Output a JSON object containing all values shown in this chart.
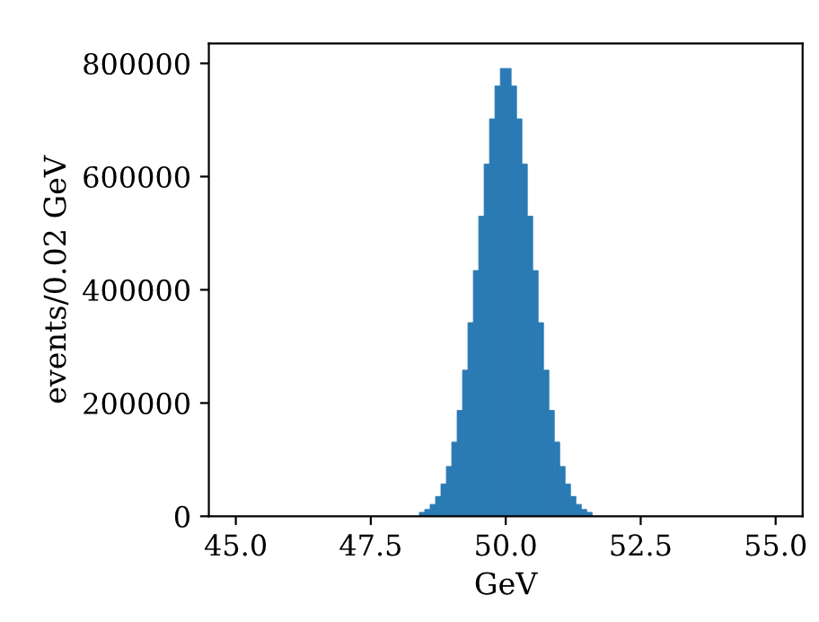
{
  "chart_data": {
    "type": "histogram",
    "xlabel": "GeV",
    "ylabel": "events/0.02 GeV",
    "bins": [
      48.0,
      48.1,
      48.2,
      48.3,
      48.4,
      48.5,
      48.6,
      48.7,
      48.8,
      48.9,
      49.0,
      49.1,
      49.2,
      49.3,
      49.4,
      49.5,
      49.6,
      49.7,
      49.8,
      49.9,
      50.0,
      50.1,
      50.2,
      50.3,
      50.4,
      50.5,
      50.6,
      50.7,
      50.8,
      50.9,
      51.0,
      51.1,
      51.2,
      51.3,
      51.4,
      51.5,
      51.6,
      51.7,
      51.8,
      51.9,
      52.0
    ],
    "values": [
      null,
      null,
      null,
      null,
      7000,
      12000,
      21000,
      35000,
      57000,
      88000,
      131000,
      187000,
      258000,
      342000,
      434000,
      530000,
      622000,
      702000,
      760000,
      791000,
      791000,
      760000,
      702000,
      622000,
      530000,
      434000,
      342000,
      258000,
      187000,
      131000,
      88000,
      57000,
      35000,
      21000,
      12000,
      7000,
      null,
      null,
      null,
      null
    ],
    "color": "#2a7ab4",
    "xlim": [
      44.5,
      55.5
    ],
    "xticks": [
      {
        "value": 45,
        "label": "45.0"
      },
      {
        "value": 47.5,
        "label": "47.5"
      },
      {
        "value": 50,
        "label": "50.0"
      },
      {
        "value": 52.5,
        "label": "52.5"
      },
      {
        "value": 55,
        "label": "55.0"
      }
    ],
    "ylim": [
      0,
      835000
    ],
    "yticks": [
      0,
      200000,
      400000,
      600000,
      800000
    ]
  }
}
